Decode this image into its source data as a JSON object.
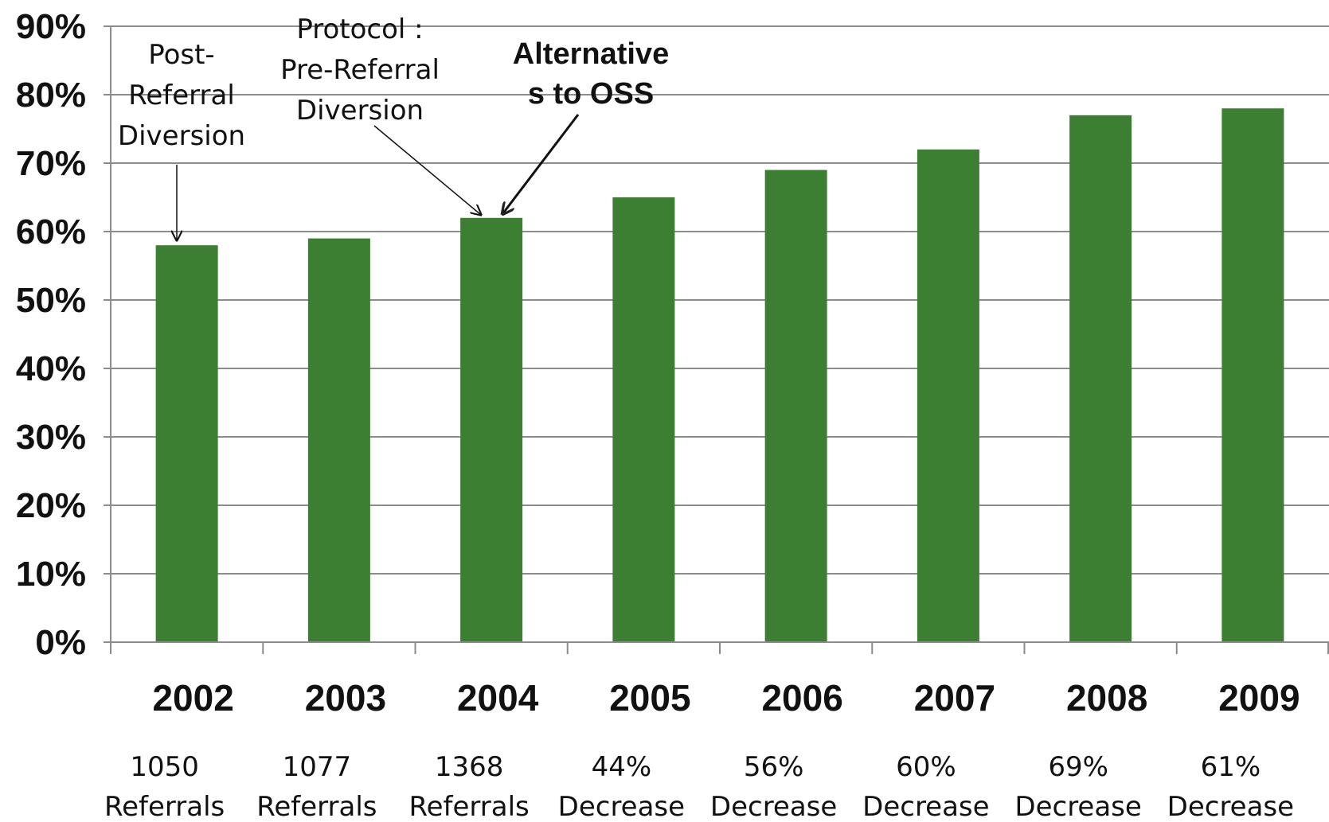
{
  "chart_data": {
    "type": "bar",
    "categories": [
      "2002",
      "2003",
      "2004",
      "2005",
      "2006",
      "2007",
      "2008",
      "2009"
    ],
    "values": [
      58,
      59,
      62,
      65,
      69,
      72,
      77,
      78
    ],
    "y_unit": "%",
    "ylim": [
      0,
      90
    ],
    "y_ticks": [
      "0%",
      "10%",
      "20%",
      "30%",
      "40%",
      "50%",
      "60%",
      "70%",
      "80%",
      "90%"
    ],
    "grid": true,
    "bar_color": "#3d7f32",
    "category_notes": [
      [
        "1050",
        "Referrals"
      ],
      [
        "1077",
        "Referrals"
      ],
      [
        "1368",
        "Referrals"
      ],
      [
        "44%",
        "Decrease"
      ],
      [
        "56%",
        "Decrease"
      ],
      [
        "60%",
        "Decrease"
      ],
      [
        "69%",
        "Decrease"
      ],
      [
        "61%",
        "Decrease"
      ]
    ],
    "annotations": [
      {
        "lines": [
          "Post-",
          "Referral",
          "Diversion"
        ],
        "target_category": "2002",
        "bold": false
      },
      {
        "lines": [
          "Protocol :",
          "Pre-Referral",
          "Diversion"
        ],
        "target_category": "2004",
        "bold": false
      },
      {
        "lines": [
          "Alternative",
          "s to OSS"
        ],
        "target_category": "2004",
        "bold": true
      }
    ]
  }
}
